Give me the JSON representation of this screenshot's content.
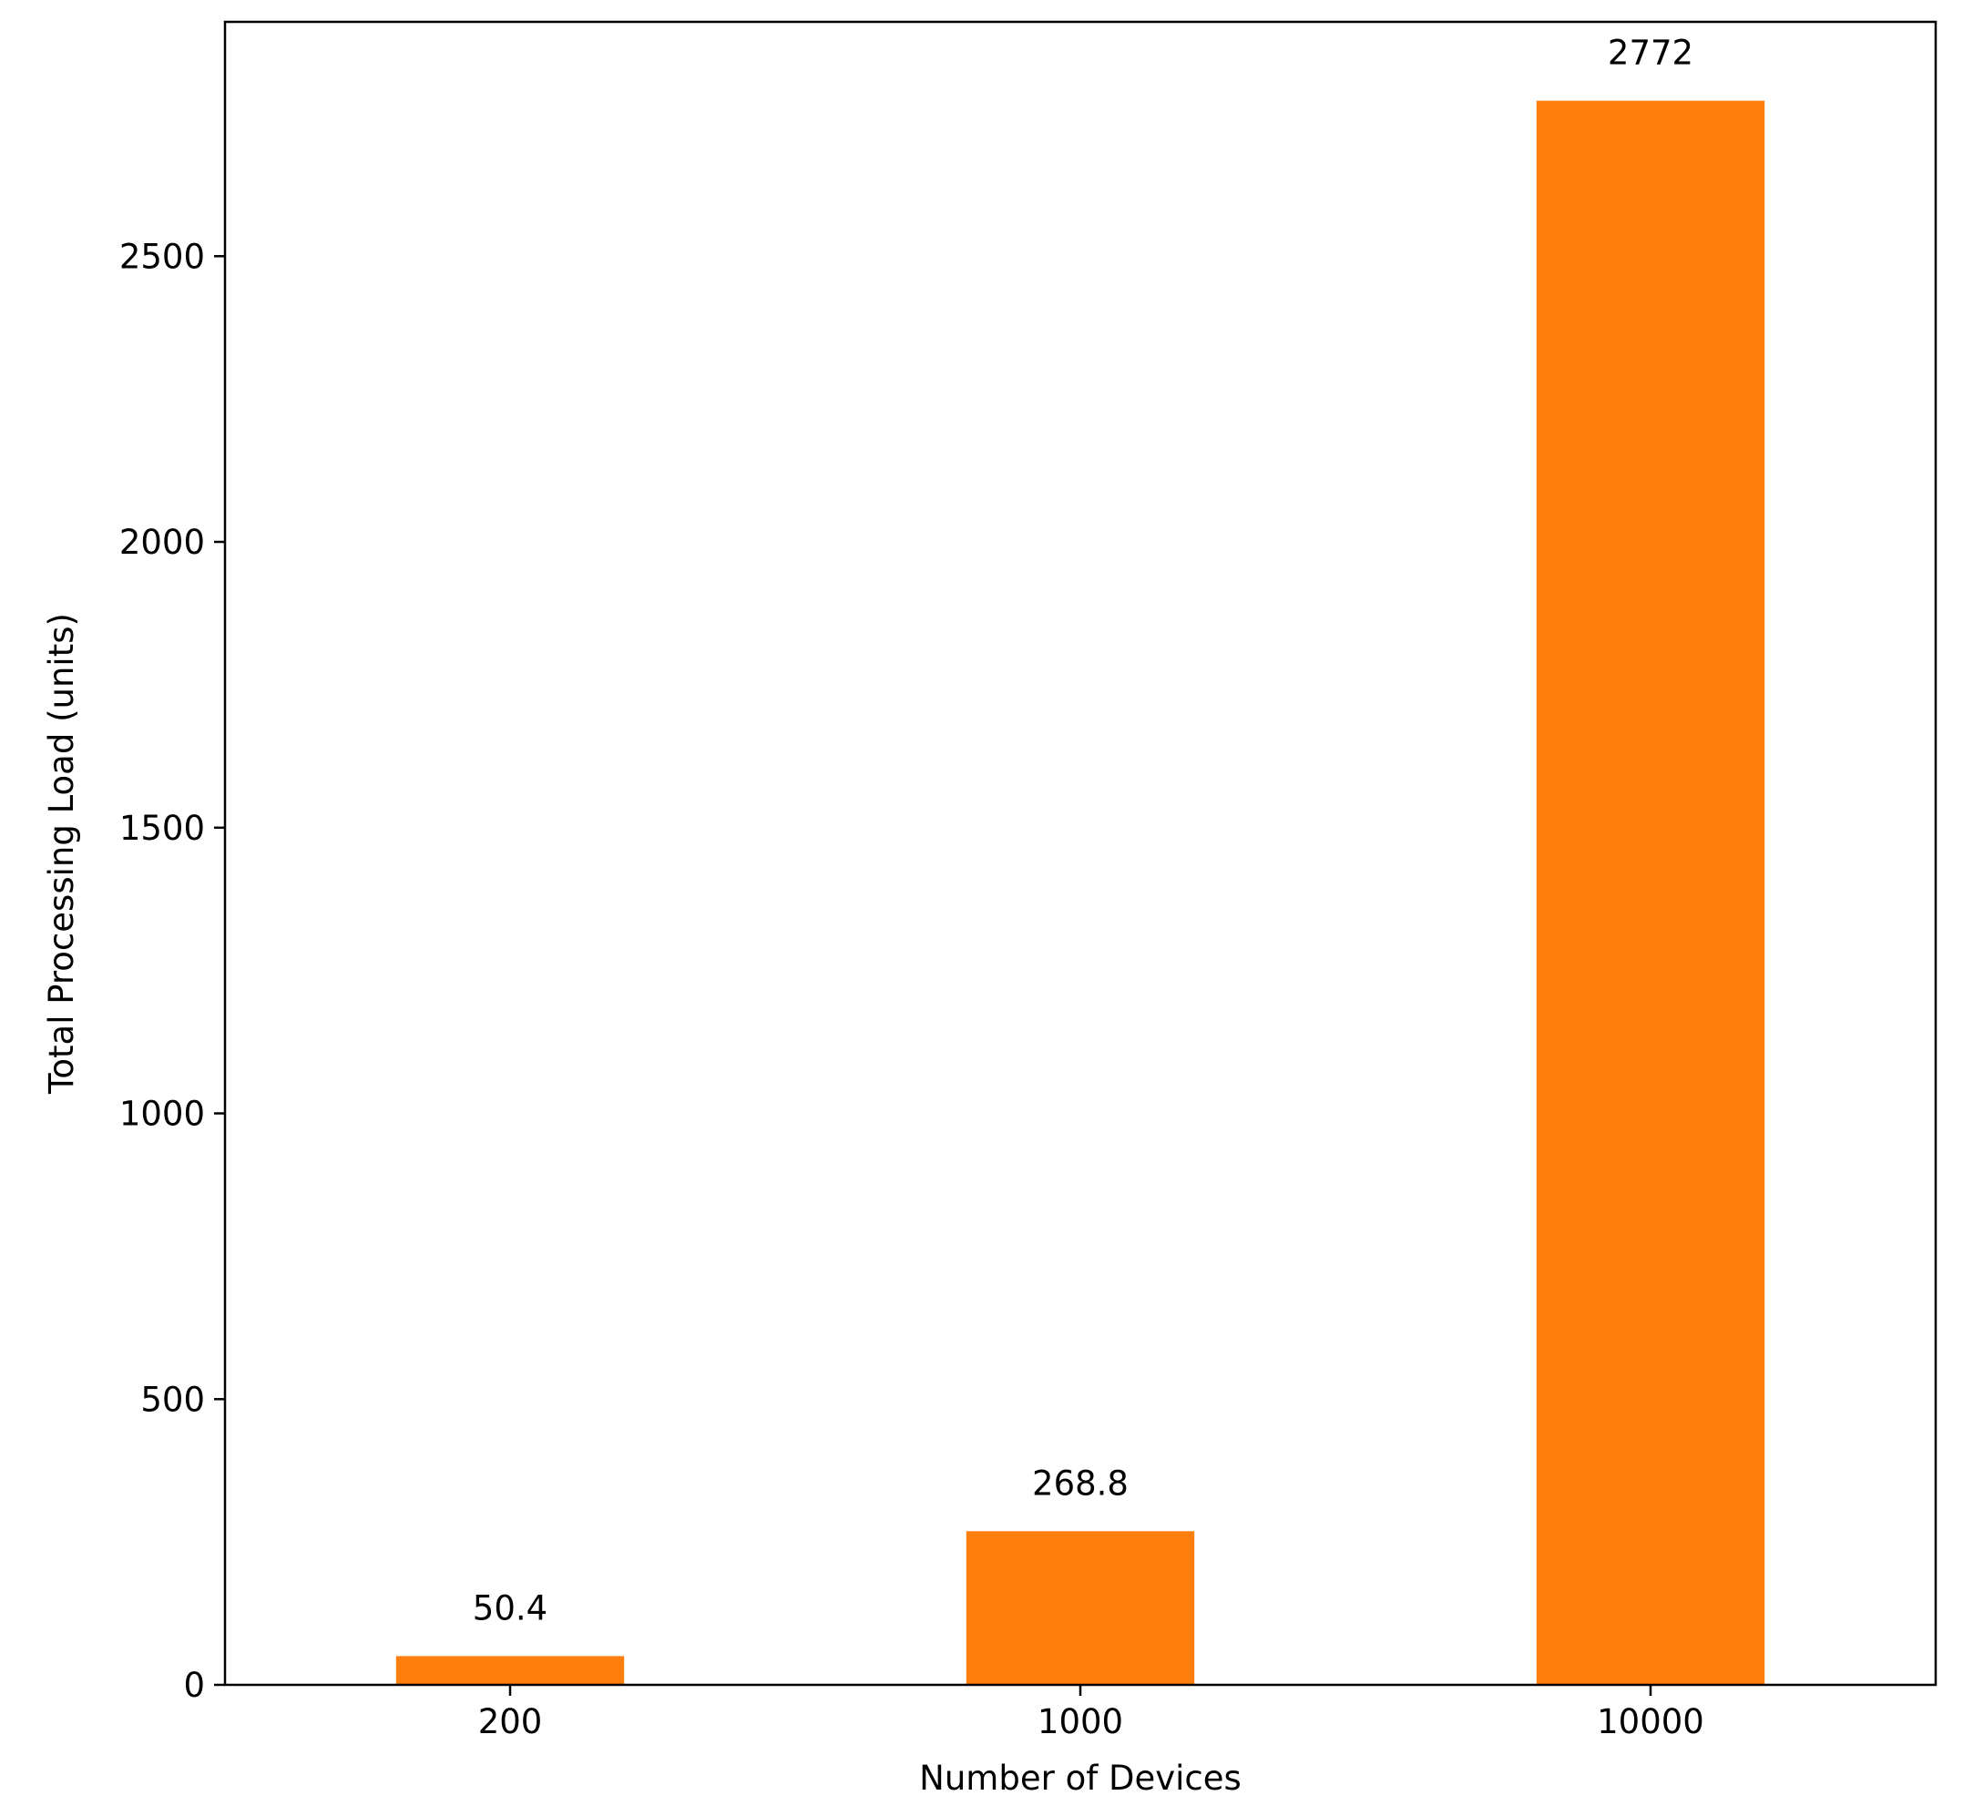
{
  "chart_data": {
    "type": "bar",
    "categories": [
      "200",
      "1000",
      "10000"
    ],
    "values": [
      50.4,
      268.8,
      2772
    ],
    "value_labels": [
      "50.4",
      "268.8",
      "2772"
    ],
    "xlabel": "Number of Devices",
    "ylabel": "Total Processing Load (units)",
    "ylim": [
      0,
      2910
    ],
    "yticks": [
      0,
      500,
      1000,
      1500,
      2000,
      2500
    ],
    "ytick_labels": [
      "0",
      "500",
      "1000",
      "1500",
      "2000",
      "2500"
    ],
    "grid": false,
    "legend": "none",
    "bar_color": "#ff7f0e"
  }
}
